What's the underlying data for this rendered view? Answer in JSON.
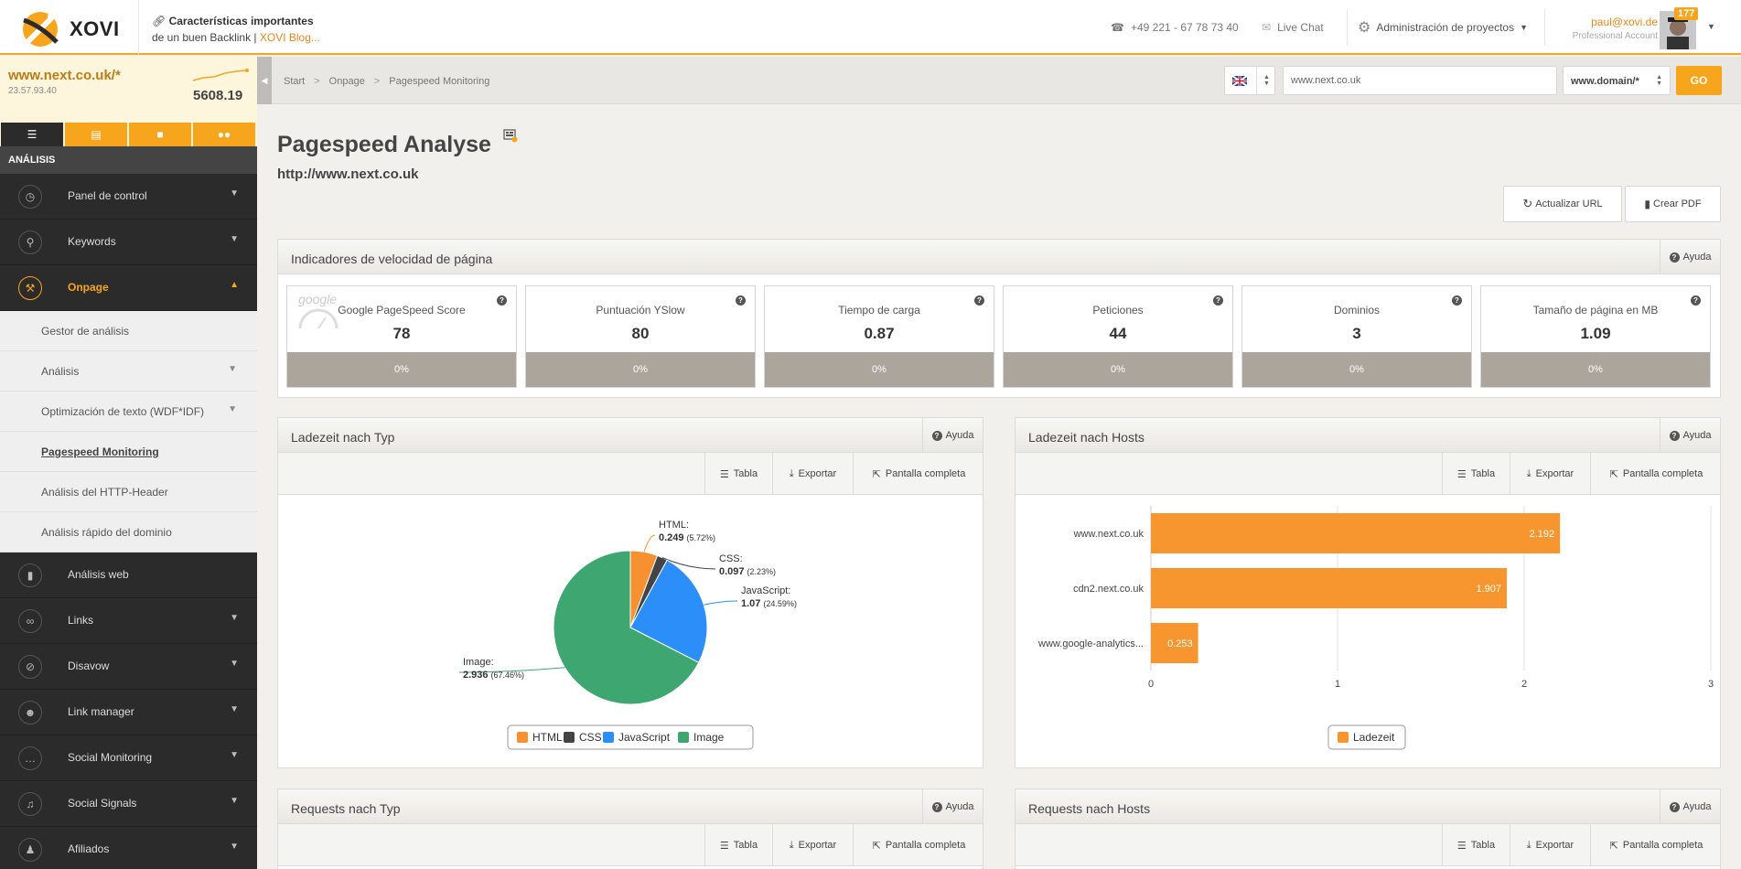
{
  "app": {
    "logo": "XOVI"
  },
  "promo": {
    "line1": "Características importantes",
    "line2_prefix": "de un buen Backlink | ",
    "line2_link": "XOVI Blog..."
  },
  "topbar": {
    "phone": "+49 221 - 67 78 73 40",
    "chat": "Live Chat",
    "projects": "Administración de proyectos"
  },
  "user": {
    "email": "paul@xovi.de",
    "account": "Professional Account",
    "badge": "177"
  },
  "domain": {
    "name": "www.next.co.uk/*",
    "ip": "23.57.93.40",
    "score": "5608.19"
  },
  "sidebar": {
    "section": "ANÁLISIS",
    "items": [
      {
        "label": "Panel de control"
      },
      {
        "label": "Keywords"
      },
      {
        "label": "Onpage"
      },
      {
        "label": "Análisis web"
      },
      {
        "label": "Links"
      },
      {
        "label": "Disavow"
      },
      {
        "label": "Link manager"
      },
      {
        "label": "Social Monitoring"
      },
      {
        "label": "Social Signals"
      },
      {
        "label": "Afiliados"
      }
    ],
    "subitems": [
      {
        "label": "Gestor de análisis"
      },
      {
        "label": "Análisis"
      },
      {
        "label": "Optimización de texto (WDF*IDF)"
      },
      {
        "label": "Pagespeed Monitoring"
      },
      {
        "label": "Análisis del HTTP-Header"
      },
      {
        "label": "Análisis rápido del dominio"
      }
    ]
  },
  "breadcrumb": [
    "Start",
    "Onpage",
    "Pagespeed Monitoring"
  ],
  "search": {
    "url": "www.next.co.uk",
    "mode": "www.domain/*",
    "go": "GO"
  },
  "page": {
    "title": "Pagespeed Analyse",
    "url": "http://www.next.co.uk",
    "update_btn": "Actualizar URL",
    "pdf_btn": "Crear PDF"
  },
  "common": {
    "help": "Ayuda",
    "table": "Tabla",
    "export": "Exportar",
    "fullscreen": "Pantalla completa"
  },
  "indicators": {
    "title": "Indicadores de velocidad de página",
    "google_watermark": "google",
    "kpis": [
      {
        "label": "Google PageSpeed Score",
        "value": "78",
        "change": "0%"
      },
      {
        "label": "Puntuación YSlow",
        "value": "80",
        "change": "0%"
      },
      {
        "label": "Tiempo de carga",
        "value": "0.87",
        "change": "0%"
      },
      {
        "label": "Peticiones",
        "value": "44",
        "change": "0%"
      },
      {
        "label": "Dominios",
        "value": "3",
        "change": "0%"
      },
      {
        "label": "Tamaño de página en MB",
        "value": "1.09",
        "change": "0%"
      }
    ]
  },
  "panels": {
    "load_type": "Ladezeit nach Typ",
    "load_hosts": "Ladezeit nach Hosts",
    "req_type": "Requests nach Typ",
    "req_hosts": "Requests nach Hosts"
  },
  "chart_data": [
    {
      "type": "pie",
      "title": "",
      "slices": [
        {
          "name": "HTML",
          "value": 0.249,
          "pct": "(5.72%)",
          "value_label": "0.249",
          "color": "#f7902e"
        },
        {
          "name": "CSS",
          "value": 0.097,
          "pct": "(2.23%)",
          "value_label": "0.097",
          "color": "#434348"
        },
        {
          "name": "JavaScript",
          "value": 1.07,
          "pct": "(24.59%)",
          "value_label": "1.07",
          "color": "#2b8ef9"
        },
        {
          "name": "Image",
          "value": 2.936,
          "pct": "(67.46%)",
          "value_label": "2.936",
          "color": "#3ea771"
        }
      ],
      "legend": "bottom"
    },
    {
      "type": "bar",
      "orientation": "horizontal",
      "categories": [
        "www.next.co.uk",
        "cdn2.next.co.uk",
        "www.google-analytics..."
      ],
      "series": [
        {
          "name": "Ladezeit",
          "values": [
            2.192,
            1.907,
            0.253
          ],
          "color": "#f7952e"
        }
      ],
      "xlim": [
        0,
        3
      ],
      "ticks": [
        0,
        1,
        2,
        3
      ],
      "grid": true,
      "legend": "bottom"
    }
  ]
}
